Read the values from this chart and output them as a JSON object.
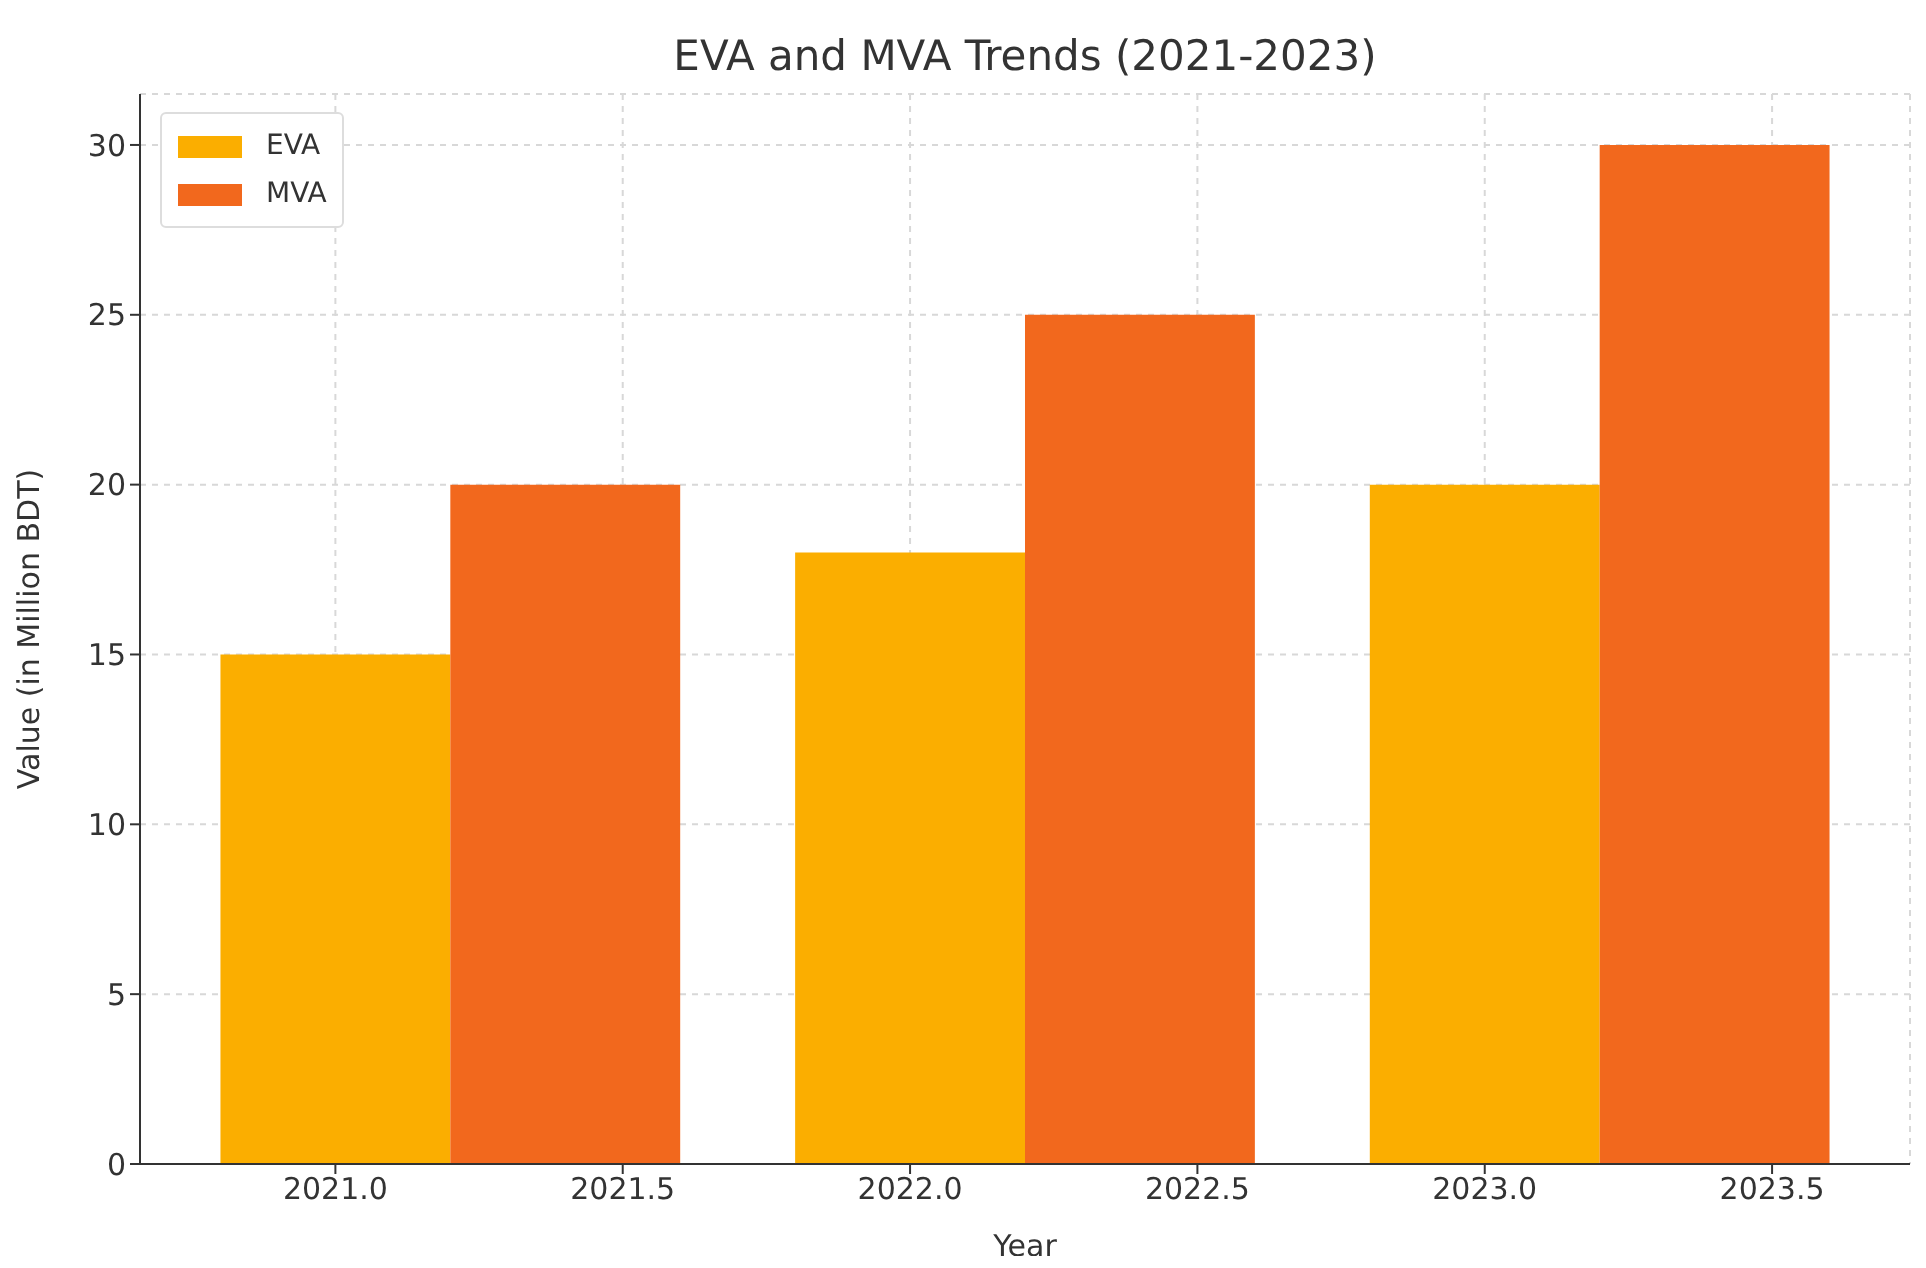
{
  "chart_data": {
    "type": "bar",
    "title": "EVA and MVA Trends (2021-2023)",
    "xlabel": "Year",
    "ylabel": "Value (in Million BDT)",
    "series": [
      {
        "name": "EVA",
        "color": "#fbae00",
        "x": [
          2021,
          2022,
          2023
        ],
        "values": [
          15,
          18,
          20
        ]
      },
      {
        "name": "MVA",
        "color": "#f2681d",
        "x": [
          2021.4,
          2022.4,
          2023.4
        ],
        "values": [
          20,
          25,
          30
        ]
      }
    ],
    "xlim": [
      2020.66,
      2023.74
    ],
    "xticks": [
      {
        "value": 2021,
        "label": "2021.0"
      },
      2021.5,
      {
        "value": 2022,
        "label": "2022.0"
      },
      2022.5,
      {
        "value": 2023,
        "label": "2023.0"
      },
      2023.5
    ],
    "ylim": [
      0,
      31.5
    ],
    "yticks": [
      0,
      5,
      10,
      15,
      20,
      25,
      30
    ],
    "grid": true,
    "legend": "top left"
  }
}
